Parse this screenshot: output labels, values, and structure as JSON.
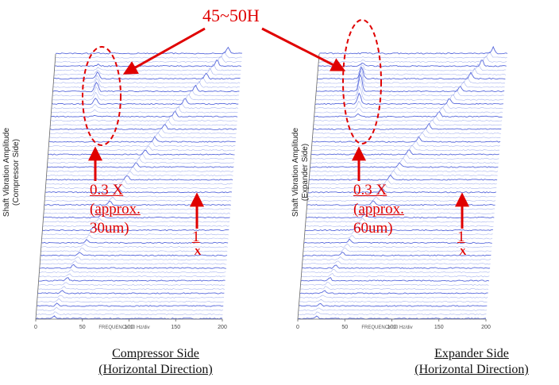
{
  "callout": {
    "label": "45~50H"
  },
  "colors": {
    "accent": "#e00000",
    "trace": "#3b4fd6",
    "trace_light": "#9aa8ec",
    "axis": "#666666"
  },
  "chart_data": [
    {
      "type": "line",
      "title": "",
      "caption": [
        "Compressor Side",
        "(Horizontal Direction)"
      ],
      "ylabel": [
        "Shaft Vibration Amplitude",
        "(Compressor Side)"
      ],
      "xlabel": "FREQUENCY 10 Hz/div",
      "xticks": [
        "0",
        "50",
        "100",
        "150",
        "200"
      ],
      "xlim": [
        0,
        200
      ],
      "annotations": [
        "0.3 X",
        "(approx.",
        "30um)",
        "1",
        "X"
      ],
      "subsynchronous_peak_hz": 47,
      "subsynchronous_amplitude_um": 30
    },
    {
      "type": "line",
      "title": "",
      "caption": [
        "Expander Side",
        "(Horizontal Direction)"
      ],
      "ylabel": [
        "Shaft Vibration Amplitude",
        "(Expander Side)"
      ],
      "xlabel": "FREQUENCY 10 Hz/div",
      "xticks": [
        "0",
        "50",
        "100",
        "150",
        "200"
      ],
      "xlim": [
        0,
        200
      ],
      "annotations": [
        "0.3 X",
        "(approx.",
        "60um)",
        "1",
        "X"
      ],
      "subsynchronous_peak_hz": 47,
      "subsynchronous_amplitude_um": 60
    }
  ]
}
